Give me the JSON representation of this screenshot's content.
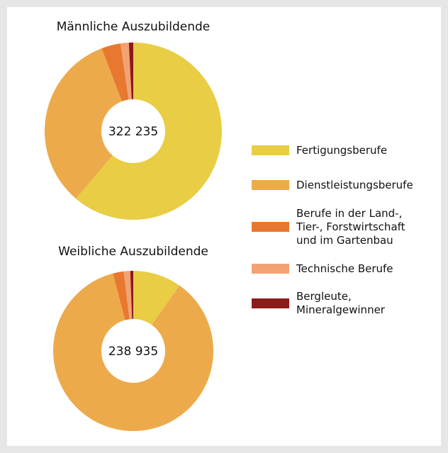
{
  "chart_data": [
    {
      "type": "pie",
      "title": "Männliche Auszubildende",
      "center_label": "322 235",
      "categories": [
        "Fertigungsberufe",
        "Dienstleistungsberufe",
        "Berufe in der Land-,\nTier-, Forstwirtschaft\nund im Gartenbau",
        "Technische Berufe",
        "Bergleute,\nMineralgewinner"
      ],
      "values": [
        61.2,
        33,
        3.5,
        1.5,
        0.8
      ],
      "colors": [
        "#e8cd45",
        "#edaa4b",
        "#e8782f",
        "#f3a274",
        "#8c1b1b"
      ]
    },
    {
      "type": "pie",
      "title": "Weibliche Auszubildende",
      "center_label": "238 935",
      "categories": [
        "Fertigungsberufe",
        "Dienstleistungsberufe",
        "Berufe in der Land-,\nTier-, Forstwirtschaft\nund im Gartenbau",
        "Technische Berufe",
        "Bergleute,\nMineralgewinner"
      ],
      "values": [
        9.8,
        86.1,
        2.2,
        1.3,
        0.6
      ],
      "colors": [
        "#e8cd45",
        "#edaa4b",
        "#e8782f",
        "#f3a274",
        "#8c1b1b"
      ]
    }
  ]
}
